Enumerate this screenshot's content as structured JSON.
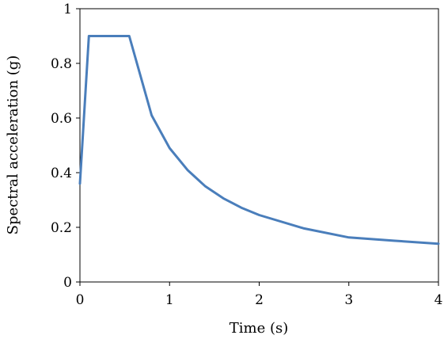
{
  "chart_data": {
    "type": "line",
    "title": "",
    "xlabel": "Time (s)",
    "ylabel": "Spectral acceleration (g)",
    "xlim": [
      0,
      4
    ],
    "ylim": [
      0,
      1
    ],
    "x_ticks": [
      "0",
      "1",
      "2",
      "3",
      "4"
    ],
    "y_ticks": [
      "0",
      "0.2",
      "0.4",
      "0.6",
      "0.8",
      "1"
    ],
    "grid": false,
    "legend": "none",
    "series": [
      {
        "color": "#4a7ebb",
        "x": [
          0,
          0.1,
          0.55,
          0.8,
          1.0,
          1.2,
          1.4,
          1.6,
          1.8,
          2.0,
          2.5,
          3.0,
          3.5,
          4.0
        ],
        "y": [
          0.36,
          0.9,
          0.9,
          0.61,
          0.49,
          0.41,
          0.35,
          0.306,
          0.272,
          0.245,
          0.196,
          0.163,
          0.151,
          0.14
        ]
      }
    ]
  }
}
